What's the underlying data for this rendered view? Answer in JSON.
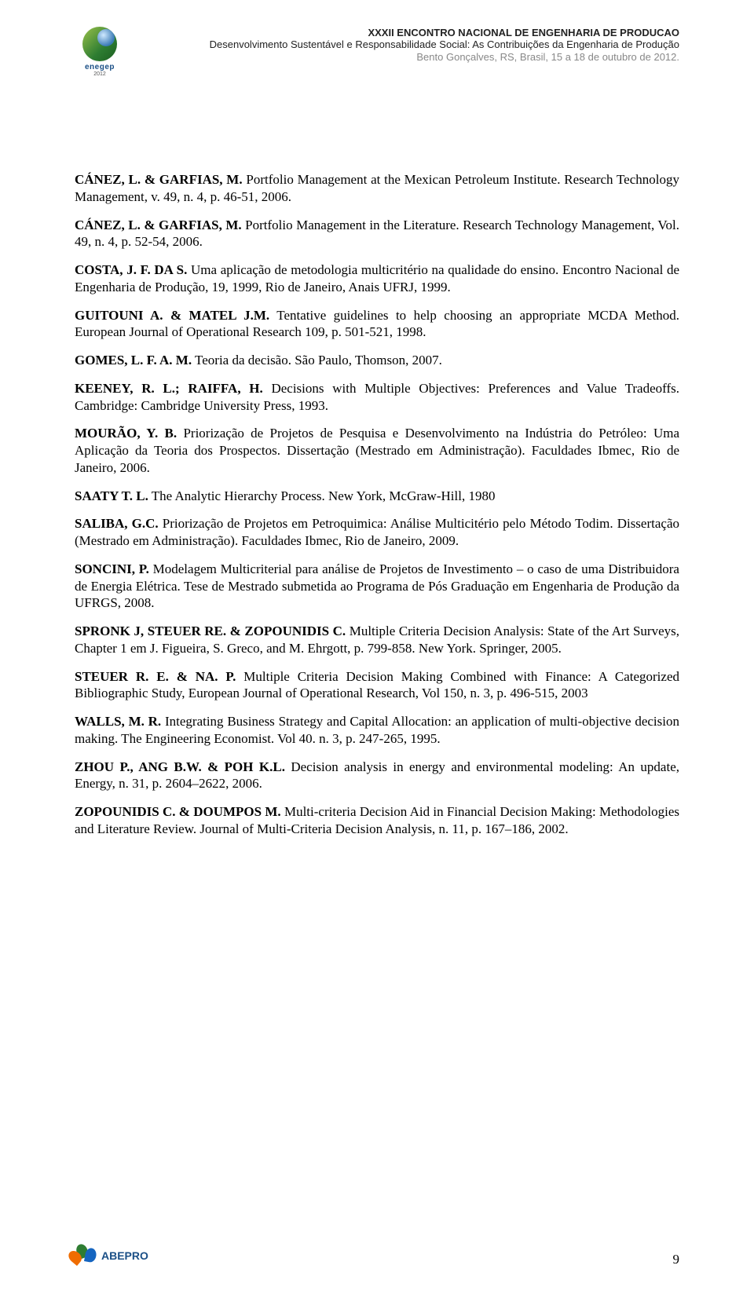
{
  "header": {
    "logo_text": "enegep",
    "logo_sub": "2012",
    "line1": "XXXII ENCONTRO NACIONAL DE ENGENHARIA DE PRODUCAO",
    "line2": "Desenvolvimento Sustentável e Responsabilidade Social: As Contribuições da Engenharia de Produção",
    "line3": "Bento Gonçalves, RS, Brasil, 15 a 18 de outubro de 2012."
  },
  "references": [
    {
      "bold": "CÁNEZ, L. & GARFIAS, M.",
      "rest": " Portfolio Management at the Mexican Petroleum Institute. Research Technology Management, v. 49, n. 4, p. 46-51, 2006."
    },
    {
      "bold": "CÁNEZ, L. & GARFIAS, M.",
      "rest": " Portfolio Management in the Literature. Research Technology Management, Vol. 49, n. 4, p. 52-54, 2006."
    },
    {
      "bold": "COSTA, J. F. DA S.",
      "rest": " Uma aplicação de metodologia multicritério na qualidade do ensino. Encontro Nacional de Engenharia de Produção, 19, 1999, Rio de Janeiro, Anais UFRJ, 1999."
    },
    {
      "bold": "GUITOUNI A. & MATEL J.M.",
      "rest": " Tentative guidelines to help choosing an appropriate MCDA Method. European Journal of Operational Research 109, p. 501-521, 1998."
    },
    {
      "bold": "GOMES, L. F. A. M.",
      "rest": " Teoria da decisão. São Paulo, Thomson, 2007."
    },
    {
      "bold": "KEENEY, R. L.; RAIFFA, H.",
      "rest": " Decisions with Multiple Objectives: Preferences and Value Tradeoffs. Cambridge: Cambridge University Press, 1993."
    },
    {
      "bold": "MOURÃO, Y. B.",
      "rest": " Priorização de Projetos de Pesquisa e Desenvolvimento na Indústria do Petróleo: Uma Aplicação da Teoria dos Prospectos. Dissertação (Mestrado em Administração). Faculdades Ibmec, Rio de Janeiro, 2006."
    },
    {
      "bold": "SAATY T. L.",
      "rest": " The Analytic Hierarchy Process. New York, McGraw-Hill, 1980"
    },
    {
      "bold": "SALIBA, G.C.",
      "rest": " Priorização de Projetos em Petroquimica: Análise Multicitério pelo Método Todim. Dissertação (Mestrado em Administração). Faculdades Ibmec, Rio de Janeiro, 2009."
    },
    {
      "bold": "SONCINI, P.",
      "rest": " Modelagem Multicriterial para análise de Projetos de Investimento – o caso de uma Distribuidora de Energia Elétrica. Tese de Mestrado submetida ao Programa de Pós Graduação em Engenharia de Produção da UFRGS, 2008."
    },
    {
      "bold": "SPRONK J, STEUER RE. & ZOPOUNIDIS C.",
      "rest": " Multiple Criteria Decision Analysis: State of the Art Surveys, Chapter 1 em J. Figueira, S. Greco, and M. Ehrgott, p. 799-858. New York. Springer, 2005."
    },
    {
      "bold": "STEUER R. E. & NA. P.",
      "rest": " Multiple Criteria Decision Making Combined with Finance: A Categorized Bibliographic Study, European Journal of Operational Research, Vol 150, n. 3, p. 496-515, 2003"
    },
    {
      "bold": "WALLS, M. R.",
      "rest": " Integrating Business Strategy and Capital Allocation: an  application of multi-objective decision making. The Engineering Economist. Vol 40. n. 3, p. 247-265, 1995."
    },
    {
      "bold": "ZHOU P., ANG B.W. & POH K.L.",
      "rest": " Decision analysis in energy and environmental modeling: An update, Energy, n. 31, p. 2604–2622, 2006."
    },
    {
      "bold": "ZOPOUNIDIS C. & DOUMPOS M.",
      "rest": " Multi-criteria Decision Aid in Financial Decision Making: Methodologies and Literature Review. Journal of Multi-Criteria Decision Analysis, n. 11,  p. 167–186, 2002."
    }
  ],
  "footer": {
    "logo_text": "ABEPRO",
    "page_number": "9"
  }
}
